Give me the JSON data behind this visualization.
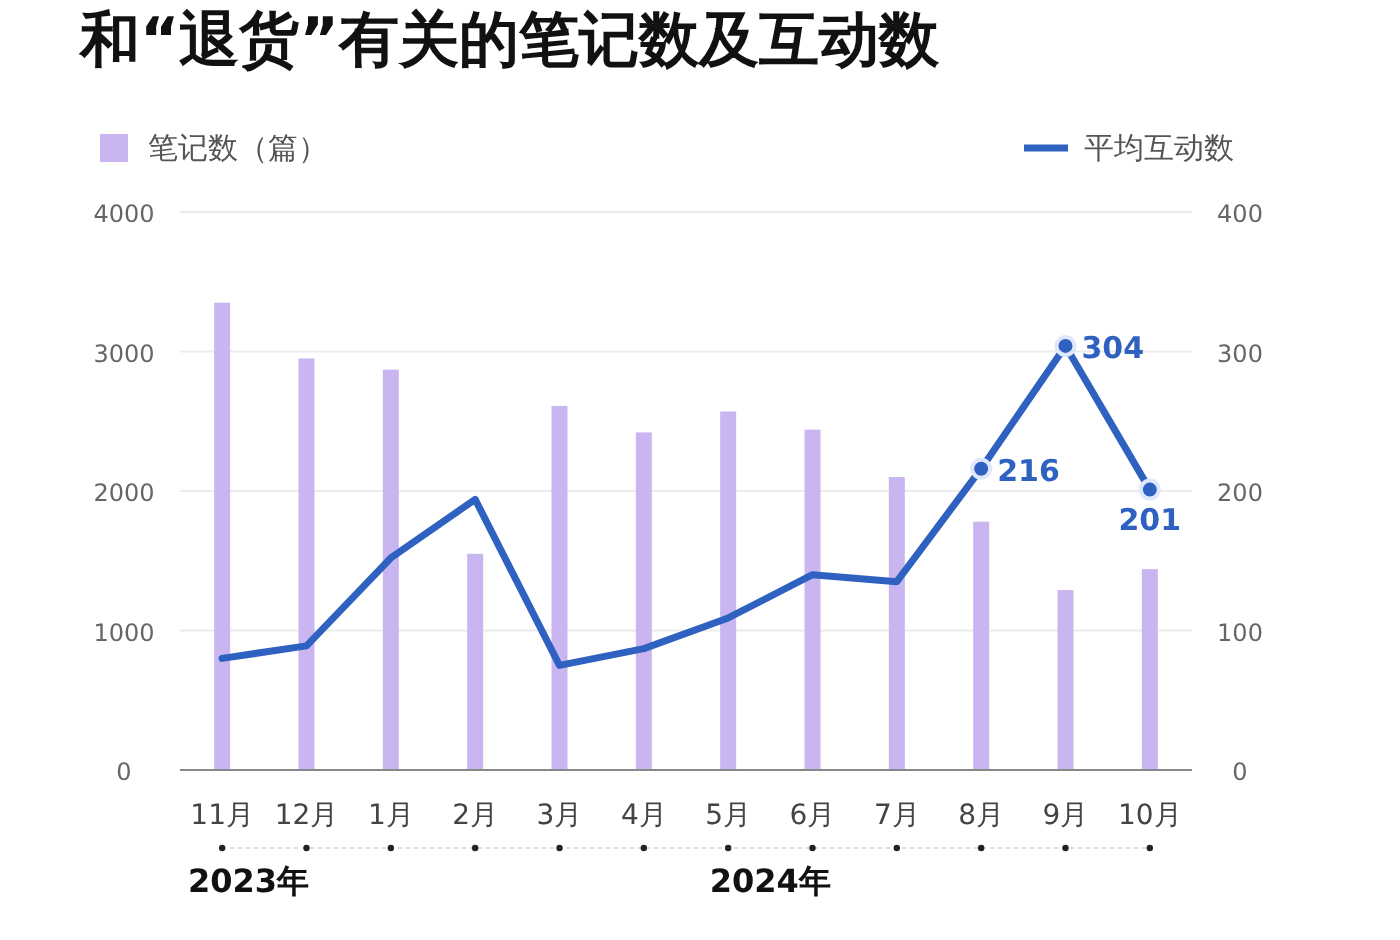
{
  "chart_data": {
    "type": "bar",
    "title": "和“退货”有关的笔记数及互动数",
    "categories": [
      "11月",
      "12月",
      "1月",
      "2月",
      "3月",
      "4月",
      "5月",
      "6月",
      "7月",
      "8月",
      "9月",
      "10月"
    ],
    "series": [
      {
        "name": "笔记数（篇）",
        "color": "#c9b6f0",
        "values": [
          3350,
          2950,
          2870,
          1550,
          2610,
          2420,
          2570,
          2440,
          2100,
          1780,
          1290,
          1440
        ]
      },
      {
        "name": "平均互动数",
        "type": "line",
        "axis": "y2",
        "color": "#2f62c0",
        "values": [
          80,
          89,
          152,
          194,
          75,
          87,
          109,
          140,
          135,
          216,
          304,
          201
        ],
        "value_labels": [
          null,
          null,
          null,
          null,
          null,
          null,
          null,
          null,
          null,
          "216",
          "304",
          "201"
        ]
      }
    ],
    "ylim": [
      0,
      4000
    ],
    "yticks": [
      0,
      1000,
      2000,
      3000,
      4000
    ],
    "y2lim": [
      0,
      400
    ],
    "y2ticks": [
      0,
      100,
      200,
      300,
      400
    ],
    "grid": "y",
    "legend": "top",
    "annotations": [
      "2023年",
      "2024年"
    ]
  }
}
